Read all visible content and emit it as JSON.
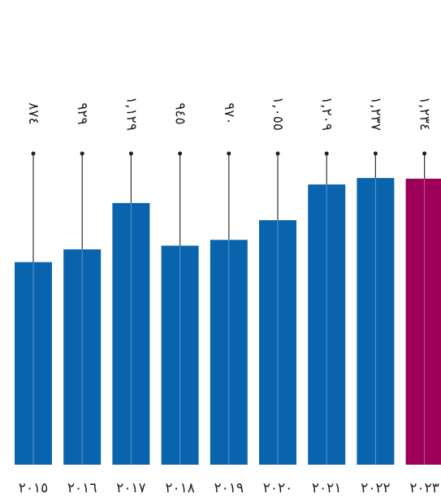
{
  "chart_data": {
    "type": "bar",
    "categories": [
      "٢٠١٥",
      "٢٠١٦",
      "٢٠١٧",
      "٢٠١٨",
      "٢٠١٩",
      "٢٠٢٠",
      "٢٠٢١",
      "٢٠٢٢",
      "٢٠٢٣"
    ],
    "values": [
      874,
      929,
      1129,
      945,
      970,
      1055,
      1209,
      1237,
      1234
    ],
    "value_labels": [
      "٨٧٤",
      "٩٢٩",
      "١,١٢٩",
      "٩٤٥",
      "٩٧٠",
      "١,٠٥٥",
      "١,٢٠٩",
      "١,٢٣٧",
      "١,٢٣٤"
    ],
    "colors": [
      "#0a64ad",
      "#0a64ad",
      "#0a64ad",
      "#0a64ad",
      "#0a64ad",
      "#0a64ad",
      "#0a64ad",
      "#0a64ad",
      "#9c0058"
    ],
    "ylim": [
      0,
      1700
    ]
  }
}
